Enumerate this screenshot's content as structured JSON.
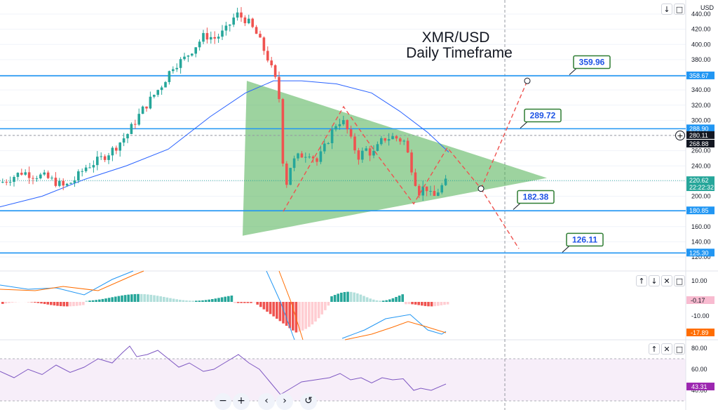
{
  "chart_data": [
    {
      "type": "candlestick",
      "title": "XMR/USD",
      "subtitle": "Daily Timeframe",
      "currency_label": "USD",
      "y_axis_ticks": [
        "440.00",
        "420.00",
        "400.00",
        "380.00",
        "360.00",
        "340.00",
        "320.00",
        "300.00",
        "280.00",
        "260.00",
        "240.00",
        "220.00",
        "200.00",
        "180.00",
        "160.00",
        "140.00",
        "120.00"
      ],
      "ylim": [
        118,
        450
      ],
      "price_badges": [
        {
          "label": "358.67",
          "value": 358.67,
          "bg": "#2196f3"
        },
        {
          "label": "288.90",
          "value": 288.9,
          "bg": "#2196f3"
        },
        {
          "label": "280.11",
          "value": 280.11,
          "bg": "#131722"
        },
        {
          "label": "268.88",
          "value": 268.88,
          "bg": "#131722"
        },
        {
          "label": "220.62",
          "value": 220.62,
          "bg": "#26a69a"
        },
        {
          "label": "22:22:32",
          "value": 211.5,
          "bg": "#26a69a"
        },
        {
          "label": "180.85",
          "value": 180.85,
          "bg": "#2196f3"
        },
        {
          "label": "125.30",
          "value": 125.3,
          "bg": "#2196f3"
        }
      ],
      "horizontal_levels": [
        358.67,
        288.9,
        180.85,
        125.3
      ],
      "dashed_level": 280.11,
      "callouts": [
        {
          "label": "359.96",
          "value": 359.96
        },
        {
          "label": "289.72",
          "value": 289.72
        },
        {
          "label": "182.38",
          "value": 182.38
        },
        {
          "label": "126.11",
          "value": 126.11
        }
      ],
      "colors": {
        "up": "#26a69a",
        "down": "#ef5350",
        "level": "#2196f3",
        "triangle": "#4caf50",
        "projection": "#ef5350",
        "ma": "#2962ff"
      }
    },
    {
      "type": "macd",
      "y_axis_ticks": [
        "10.00",
        "-10.00"
      ],
      "badges": [
        {
          "label": "-0.17",
          "bg": "#f8bbd0"
        },
        {
          "label": "-17.89",
          "bg": "#ff6d00"
        }
      ]
    },
    {
      "type": "rsi",
      "y_axis_ticks": [
        "80.00",
        "60.00",
        "40.00"
      ],
      "badges": [
        {
          "label": "43.31",
          "bg": "#9c27b0"
        }
      ],
      "band": [
        30,
        70
      ]
    }
  ],
  "controls": {
    "zoom_out": "−",
    "zoom_in": "+",
    "scroll_left": "‹",
    "scroll_right": "›",
    "reset": "↺",
    "pane_up": "↑",
    "pane_down": "↓",
    "pane_close": "✕",
    "pane_maximize": "□",
    "plus_circle": "+"
  }
}
